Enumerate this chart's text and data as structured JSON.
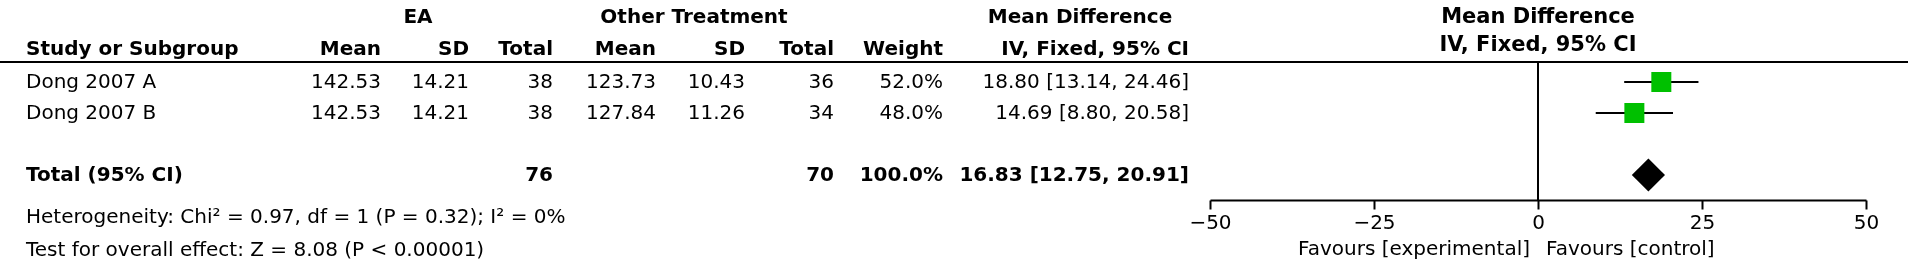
{
  "chart_data": [
    {
      "type": "other",
      "ylabel": "Study or Subgroup",
      "data_labels": true,
      "categories": [
        "Dong 2007 A",
        "Dong 2007 B",
        "Total (95% CI)"
      ],
      "series": [
        {
          "name": "Mean",
          "values": [
            142.53,
            142.53,
            null
          ]
        },
        {
          "name": "SD",
          "values": [
            14.21,
            14.21,
            null
          ]
        },
        {
          "name": "Total",
          "values": [
            38,
            38,
            76
          ]
        },
        {
          "name": "Mean",
          "values": [
            123.73,
            127.84,
            null
          ]
        },
        {
          "name": "SD",
          "values": [
            10.43,
            11.26,
            null
          ]
        },
        {
          "name": "Total",
          "values": [
            36,
            34,
            70
          ]
        },
        {
          "name": "Weight",
          "values": [
            52.0,
            48.0,
            100.0
          ],
          "value_labels": [
            "52.0%",
            "48.0%",
            "100.0%"
          ]
        },
        {
          "name": "IV, Fixed, 95% CI",
          "values": [
            18.8,
            14.69,
            16.83
          ],
          "value_labels": [
            "18.80 [13.14, 24.46]",
            "14.69 [8.80, 20.58]",
            "16.83 [12.75, 20.91]"
          ]
        }
      ],
      "annotations": [
        "EA",
        "Other Treatment",
        "Mean Difference",
        "Heterogeneity: Chi² = 0.97, df = 1 (P = 0.32); I² = 0%",
        "Test for overall effect: Z = 8.08 (P < 0.00001)"
      ]
    },
    {
      "type": "scatter",
      "orientation": "horizontal",
      "title": "Mean Difference",
      "subtitle": "IV, Fixed, 95% CI",
      "categories": [
        null,
        null,
        null
      ],
      "series": [
        {
          "color": "#00c000",
          "marker": "square",
          "values": [
            18.8,
            14.69,
            null
          ],
          "errors": [
            [
              13.14,
              24.46
            ],
            [
              8.8,
              20.58
            ],
            null
          ]
        },
        {
          "color": "#000000",
          "marker": "diamond",
          "values": [
            null,
            null,
            16.83
          ]
        }
      ],
      "xlim": [
        -50,
        50
      ],
      "xticks": [
        -50,
        -25,
        0,
        25,
        50
      ],
      "ref_lines": [
        {
          "axis": "x",
          "value": 0
        }
      ],
      "annotations": [
        "Favours [experimental]",
        "Favours [control]"
      ]
    }
  ]
}
